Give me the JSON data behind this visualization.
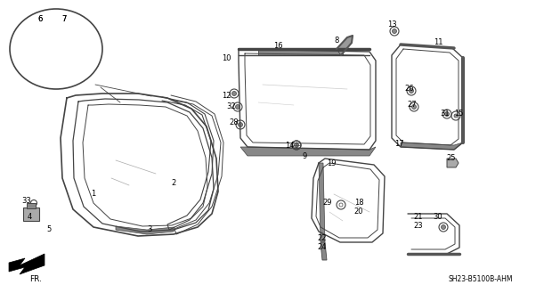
{
  "bg_color": "#ffffff",
  "line_color": "#444444",
  "title_bottom": "SH23-B5100B-AHM",
  "fig_w": 6.2,
  "fig_h": 3.2,
  "dpi": 100
}
